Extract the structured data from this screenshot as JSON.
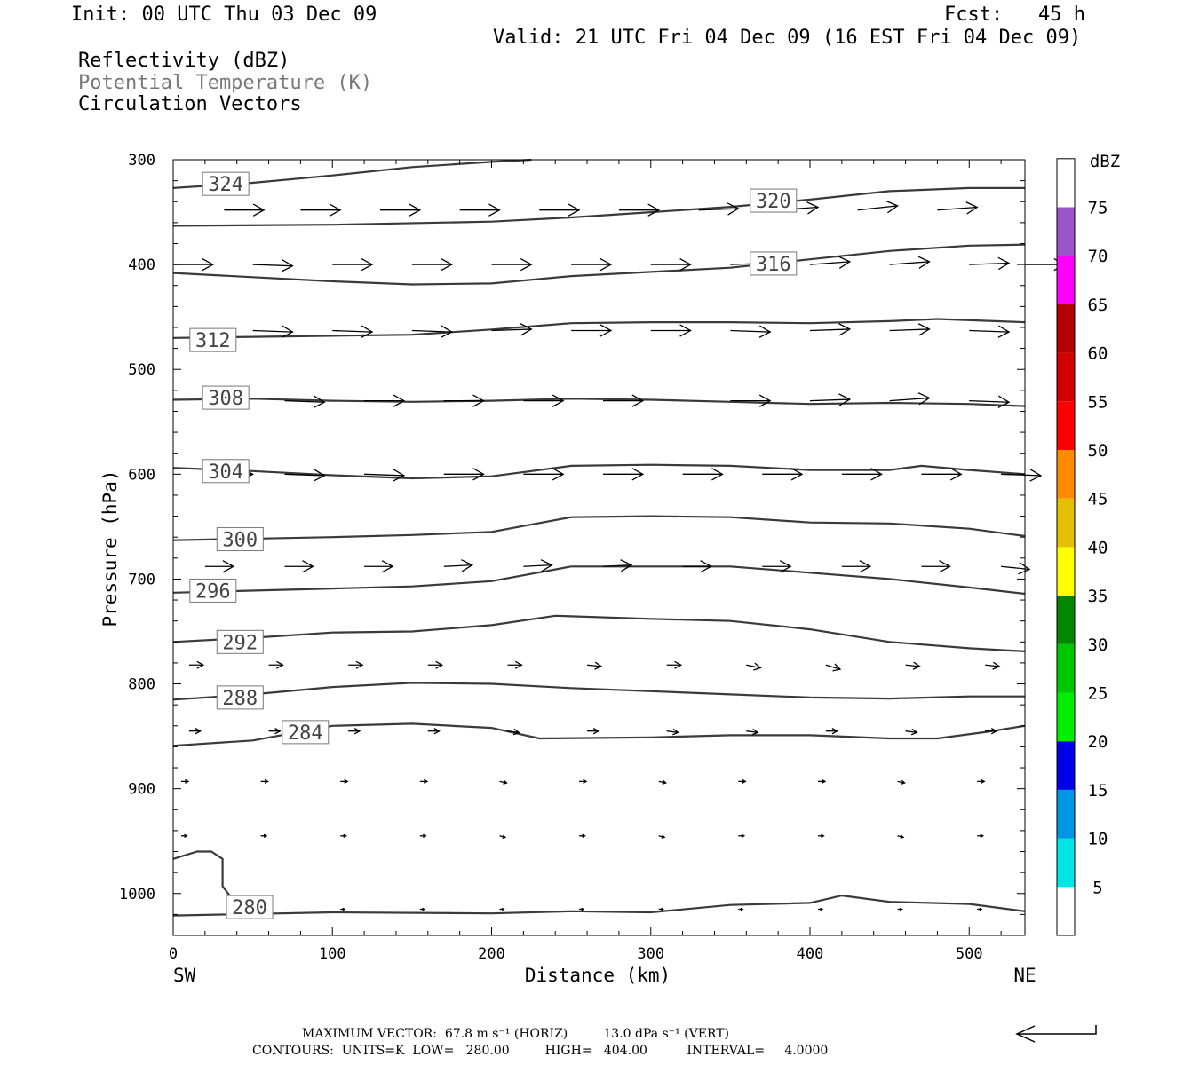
{
  "header": {
    "init": "Init: 00 UTC Thu 03 Dec 09",
    "fcst": "Fcst:   45 h",
    "valid": "Valid: 21 UTC Fri 04 Dec 09 (16 EST Fri 04 Dec 09)"
  },
  "fields": [
    {
      "label": "Reflectivity (dBZ)",
      "color": "#000000"
    },
    {
      "label": "Potential Temperature (K)",
      "color": "#777777"
    },
    {
      "label": "Circulation Vectors",
      "color": "#000000"
    }
  ],
  "footer": {
    "max_vector": "MAXIMUM VECTOR:  67.8 m s⁻¹ (HORIZ)         13.0 dPa s⁻¹ (VERT)",
    "contours": "CONTOURS:  UNITS=K  LOW=   280.00         HIGH=   404.00          INTERVAL=     4.0000"
  },
  "chart_data": {
    "type": "contour",
    "xlabel": "Distance (km)",
    "ylabel": "Pressure (hPa)",
    "xlim": [
      0,
      535
    ],
    "ylim": [
      300,
      1040
    ],
    "x_ticks": [
      0,
      100,
      200,
      300,
      400,
      500
    ],
    "y_ticks": [
      300,
      400,
      500,
      600,
      700,
      800,
      900,
      1000
    ],
    "x_end_labels": {
      "left": "SW",
      "right": "NE"
    },
    "contour_color": "#3a3a3a",
    "contours": [
      {
        "level": "324",
        "points": [
          [
            0,
            327
          ],
          [
            50,
            322
          ],
          [
            100,
            315
          ],
          [
            150,
            307
          ],
          [
            200,
            302
          ],
          [
            225,
            300
          ]
        ],
        "label_at": [
          33,
          323
        ]
      },
      {
        "level": "320",
        "points": [
          [
            0,
            363
          ],
          [
            100,
            362
          ],
          [
            200,
            359
          ],
          [
            250,
            355
          ],
          [
            300,
            350
          ],
          [
            350,
            345
          ],
          [
            400,
            338
          ],
          [
            450,
            330
          ],
          [
            500,
            327
          ],
          [
            535,
            327
          ]
        ],
        "label_at": [
          377,
          339
        ]
      },
      {
        "level": "316",
        "points": [
          [
            0,
            408
          ],
          [
            50,
            412
          ],
          [
            100,
            416
          ],
          [
            150,
            419
          ],
          [
            200,
            418
          ],
          [
            250,
            411
          ],
          [
            300,
            407
          ],
          [
            350,
            403
          ],
          [
            400,
            395
          ],
          [
            450,
            387
          ],
          [
            500,
            382
          ],
          [
            535,
            381
          ]
        ],
        "label_at": [
          377,
          399
        ]
      },
      {
        "level": "312",
        "points": [
          [
            0,
            470
          ],
          [
            50,
            469
          ],
          [
            100,
            468
          ],
          [
            150,
            467
          ],
          [
            200,
            462
          ],
          [
            250,
            456
          ],
          [
            300,
            455
          ],
          [
            350,
            455
          ],
          [
            400,
            456
          ],
          [
            450,
            454
          ],
          [
            480,
            452
          ],
          [
            535,
            455
          ]
        ],
        "label_at": [
          25,
          472
        ]
      },
      {
        "level": "308",
        "points": [
          [
            0,
            529
          ],
          [
            50,
            528
          ],
          [
            100,
            530
          ],
          [
            150,
            531
          ],
          [
            200,
            530
          ],
          [
            250,
            528
          ],
          [
            300,
            529
          ],
          [
            350,
            531
          ],
          [
            400,
            533
          ],
          [
            450,
            532
          ],
          [
            500,
            533
          ],
          [
            535,
            535
          ]
        ],
        "label_at": [
          33,
          527
        ]
      },
      {
        "level": "304",
        "points": [
          [
            0,
            594
          ],
          [
            50,
            597
          ],
          [
            100,
            601
          ],
          [
            150,
            604
          ],
          [
            200,
            602
          ],
          [
            250,
            592
          ],
          [
            300,
            591
          ],
          [
            350,
            592
          ],
          [
            400,
            596
          ],
          [
            450,
            596
          ],
          [
            470,
            592
          ],
          [
            500,
            596
          ],
          [
            535,
            600
          ]
        ],
        "label_at": [
          33,
          597
        ]
      },
      {
        "level": "300",
        "points": [
          [
            0,
            663
          ],
          [
            100,
            660
          ],
          [
            150,
            658
          ],
          [
            200,
            655
          ],
          [
            250,
            641
          ],
          [
            300,
            640
          ],
          [
            350,
            641
          ],
          [
            400,
            646
          ],
          [
            450,
            647
          ],
          [
            500,
            652
          ],
          [
            535,
            659
          ]
        ],
        "label_at": [
          42,
          662
        ]
      },
      {
        "level": "296",
        "points": [
          [
            0,
            713
          ],
          [
            100,
            709
          ],
          [
            150,
            707
          ],
          [
            200,
            702
          ],
          [
            250,
            688
          ],
          [
            300,
            688
          ],
          [
            350,
            688
          ],
          [
            400,
            694
          ],
          [
            450,
            700
          ],
          [
            500,
            708
          ],
          [
            535,
            714
          ]
        ],
        "label_at": [
          25,
          711
        ]
      },
      {
        "level": "292",
        "points": [
          [
            0,
            760
          ],
          [
            50,
            756
          ],
          [
            100,
            751
          ],
          [
            150,
            750
          ],
          [
            200,
            744
          ],
          [
            240,
            735
          ],
          [
            300,
            738
          ],
          [
            350,
            740
          ],
          [
            400,
            748
          ],
          [
            450,
            760
          ],
          [
            500,
            766
          ],
          [
            535,
            769
          ]
        ],
        "label_at": [
          42,
          760
        ]
      },
      {
        "level": "288",
        "points": [
          [
            0,
            815
          ],
          [
            50,
            810
          ],
          [
            100,
            803
          ],
          [
            150,
            799
          ],
          [
            200,
            800
          ],
          [
            250,
            804
          ],
          [
            300,
            807
          ],
          [
            350,
            810
          ],
          [
            400,
            813
          ],
          [
            450,
            814
          ],
          [
            500,
            812
          ],
          [
            535,
            812
          ]
        ],
        "label_at": [
          42,
          813
        ]
      },
      {
        "level": "284",
        "points": [
          [
            0,
            859
          ],
          [
            50,
            854
          ],
          [
            100,
            840
          ],
          [
            150,
            838
          ],
          [
            200,
            842
          ],
          [
            230,
            852
          ],
          [
            300,
            851
          ],
          [
            350,
            849
          ],
          [
            400,
            849
          ],
          [
            450,
            852
          ],
          [
            480,
            852
          ],
          [
            510,
            846
          ],
          [
            535,
            840
          ]
        ],
        "label_at": [
          83,
          846
        ]
      },
      {
        "level": "280",
        "points": [
          [
            0,
            1021
          ],
          [
            100,
            1018
          ],
          [
            200,
            1019
          ],
          [
            250,
            1017
          ],
          [
            300,
            1018
          ],
          [
            350,
            1011
          ],
          [
            400,
            1009
          ],
          [
            420,
            1002
          ],
          [
            450,
            1008
          ],
          [
            500,
            1010
          ],
          [
            535,
            1017
          ]
        ],
        "label_at": [
          48,
          1013
        ]
      },
      {
        "level": "",
        "points": [
          [
            0,
            967
          ],
          [
            15,
            960
          ],
          [
            24,
            960
          ],
          [
            31,
            967
          ],
          [
            31,
            993
          ],
          [
            36,
            1003
          ]
        ],
        "label_at": null
      }
    ],
    "vectors": [
      {
        "p": 348,
        "x": [
          32,
          80,
          130,
          180,
          230,
          280,
          330,
          380,
          430,
          480
        ],
        "u": [
          28,
          28,
          28,
          28,
          28,
          28,
          28,
          28,
          28,
          28
        ],
        "w": [
          0,
          0,
          0,
          0,
          0,
          0,
          -1,
          -2,
          -3,
          -2
        ]
      },
      {
        "p": 400,
        "x": [
          0,
          50,
          100,
          150,
          200,
          250,
          300,
          350,
          400,
          450,
          500,
          535
        ],
        "u": [
          28,
          28,
          28,
          28,
          28,
          28,
          28,
          28,
          28,
          28,
          28,
          28
        ],
        "w": [
          0,
          1,
          0,
          0,
          0,
          0,
          0,
          -1,
          -2,
          -2,
          -1,
          0
        ]
      },
      {
        "p": 463,
        "x": [
          50,
          100,
          150,
          200,
          250,
          300,
          350,
          400,
          450,
          500
        ],
        "u": [
          28,
          28,
          28,
          28,
          28,
          28,
          28,
          28,
          28,
          28
        ],
        "w": [
          1,
          1,
          1,
          -1,
          0,
          0,
          1,
          -1,
          -1,
          1
        ]
      },
      {
        "p": 530,
        "x": [
          20,
          70,
          120,
          170,
          220,
          270,
          350,
          400,
          450,
          500
        ],
        "u": [
          28,
          28,
          28,
          28,
          28,
          28,
          28,
          28,
          28,
          28
        ],
        "w": [
          1,
          1,
          0,
          0,
          0,
          0,
          0,
          -1,
          -2,
          1
        ]
      },
      {
        "p": 600,
        "x": [
          25,
          70,
          120,
          170,
          220,
          270,
          320,
          370,
          420,
          470,
          520
        ],
        "u": [
          28,
          28,
          28,
          28,
          28,
          28,
          28,
          28,
          28,
          28,
          28
        ],
        "w": [
          0,
          1,
          1,
          0,
          0,
          0,
          0,
          0,
          0,
          0,
          1
        ]
      },
      {
        "p": 688,
        "x": [
          20,
          70,
          120,
          170,
          220,
          270,
          320,
          370,
          420,
          470,
          520
        ],
        "u": [
          20,
          20,
          20,
          20,
          20,
          20,
          20,
          20,
          20,
          20,
          20
        ],
        "w": [
          0,
          0,
          0,
          -1,
          -1,
          -1,
          0,
          0,
          0,
          0,
          2
        ]
      },
      {
        "p": 782,
        "x": [
          10,
          60,
          110,
          160,
          210,
          260,
          310,
          360,
          410,
          460,
          510
        ],
        "u": [
          10,
          10,
          10,
          10,
          10,
          10,
          10,
          10,
          10,
          10,
          10
        ],
        "w": [
          0,
          0,
          0,
          0,
          0,
          1,
          0,
          2,
          3,
          1,
          1
        ]
      },
      {
        "p": 845,
        "x": [
          10,
          60,
          110,
          160,
          210,
          260,
          310,
          360,
          410,
          460,
          510
        ],
        "u": [
          8,
          8,
          8,
          8,
          8,
          8,
          8,
          8,
          8,
          8,
          8
        ],
        "w": [
          0,
          0,
          0,
          0,
          1,
          0,
          1,
          1,
          0,
          1,
          0
        ]
      },
      {
        "p": 893,
        "x": [
          5,
          55,
          105,
          155,
          205,
          255,
          305,
          355,
          405,
          455,
          505
        ],
        "u": [
          5,
          5,
          5,
          5,
          5,
          5,
          5,
          5,
          5,
          5,
          5
        ],
        "w": [
          0,
          0,
          0,
          0,
          1,
          0,
          1,
          0,
          0,
          1,
          0
        ]
      },
      {
        "p": 945,
        "x": [
          5,
          55,
          105,
          155,
          205,
          255,
          305,
          355,
          405,
          455,
          505
        ],
        "u": [
          4,
          4,
          4,
          4,
          4,
          4,
          4,
          4,
          4,
          4,
          4
        ],
        "w": [
          0,
          0,
          0,
          0,
          1,
          0,
          1,
          0,
          0,
          1,
          0
        ]
      },
      {
        "p": 1015,
        "x": [
          105,
          155,
          205,
          255,
          305,
          355,
          405,
          455,
          505
        ],
        "u": [
          3,
          3,
          3,
          3,
          3,
          3,
          3,
          3,
          3
        ],
        "w": [
          0,
          0,
          0,
          0,
          0,
          0,
          0,
          0,
          0
        ]
      }
    ],
    "colorbar": {
      "units": "dBZ",
      "levels": [
        "5",
        "10",
        "15",
        "20",
        "25",
        "30",
        "35",
        "40",
        "45",
        "50",
        "55",
        "60",
        "65",
        "70",
        "75"
      ],
      "colors": [
        "#ffffff",
        "#00e5e5",
        "#0096e6",
        "#0000e6",
        "#00ee00",
        "#00c800",
        "#008700",
        "#ffff00",
        "#e6be00",
        "#ff8c00",
        "#ff0000",
        "#d20000",
        "#b40000",
        "#ff00ff",
        "#9b55c8",
        "#ffffff"
      ]
    },
    "ref_vector": {
      "direction": "left"
    }
  }
}
